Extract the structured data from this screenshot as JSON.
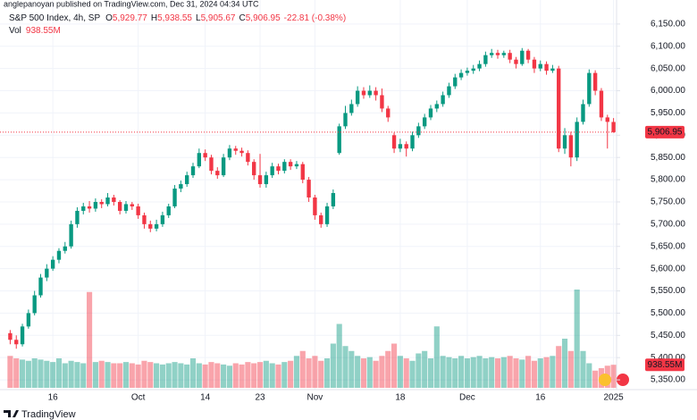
{
  "header": {
    "publisher": "anglepanoyan published on TradingView.com, Dec 31, 2024 04:34 UTC"
  },
  "footer": {
    "brand": "TradingView"
  },
  "chart_data": {
    "type": "candlestick",
    "title": "S&P 500 Index, 4h, SP",
    "ohlc": [
      {
        "key": "O",
        "value": "5,929.77"
      },
      {
        "key": "H",
        "value": "5,938.55"
      },
      {
        "key": "L",
        "value": "5,905.67"
      },
      {
        "key": "C",
        "value": "5,906.95"
      }
    ],
    "change": "-22.81 (-0.38%)",
    "up_color": "#089981",
    "down_color": "#f23645",
    "grid": true,
    "ylim": [
      5320,
      6204
    ],
    "yticks": [
      {
        "value": 5350,
        "label": "5,350.00"
      },
      {
        "value": 5400,
        "label": "5,400.00"
      },
      {
        "value": 5450,
        "label": "5,450.00"
      },
      {
        "value": 5500,
        "label": "5,500.00"
      },
      {
        "value": 5550,
        "label": "5,550.00"
      },
      {
        "value": 5600,
        "label": "5,600.00"
      },
      {
        "value": 5650,
        "label": "5,650.00"
      },
      {
        "value": 5700,
        "label": "5,700.00"
      },
      {
        "value": 5750,
        "label": "5,750.00"
      },
      {
        "value": 5800,
        "label": "5,800.00"
      },
      {
        "value": 5850,
        "label": "5,850.00"
      },
      {
        "value": 5900,
        "label": "5,900.00"
      },
      {
        "value": 5950,
        "label": "5,950.00"
      },
      {
        "value": 6000,
        "label": "6,000.00"
      },
      {
        "value": 6050,
        "label": "6,050.00"
      },
      {
        "value": 6100,
        "label": "6,100.00"
      },
      {
        "value": 6150,
        "label": "6,150.00"
      }
    ],
    "last_price_label": "5,906.95",
    "categories": [
      null,
      null,
      null,
      null,
      null,
      null,
      null,
      "16",
      null,
      null,
      null,
      null,
      null,
      null,
      null,
      null,
      null,
      null,
      null,
      null,
      null,
      "Oct",
      null,
      null,
      null,
      null,
      null,
      null,
      null,
      null,
      null,
      null,
      "14",
      null,
      null,
      null,
      null,
      null,
      null,
      null,
      null,
      "23",
      null,
      null,
      null,
      null,
      null,
      null,
      null,
      null,
      "Nov",
      null,
      null,
      null,
      null,
      null,
      null,
      null,
      null,
      null,
      null,
      null,
      null,
      null,
      "18",
      null,
      null,
      null,
      null,
      null,
      null,
      null,
      null,
      null,
      null,
      "Dec",
      null,
      null,
      null,
      null,
      null,
      null,
      null,
      null,
      null,
      null,
      null,
      "16",
      null,
      null,
      null,
      null,
      null,
      null,
      null,
      null,
      null,
      null,
      null,
      "2025"
    ],
    "candles": [
      [
        5455,
        5462,
        5430,
        5440
      ],
      [
        5440,
        5450,
        5420,
        5430
      ],
      [
        5430,
        5476,
        5425,
        5470
      ],
      [
        5470,
        5508,
        5465,
        5500
      ],
      [
        5500,
        5550,
        5495,
        5540
      ],
      [
        5540,
        5588,
        5535,
        5580
      ],
      [
        5580,
        5610,
        5572,
        5600
      ],
      [
        5600,
        5628,
        5595,
        5620
      ],
      [
        5620,
        5646,
        5612,
        5640
      ],
      [
        5640,
        5660,
        5634,
        5650
      ],
      [
        5650,
        5708,
        5645,
        5700
      ],
      [
        5700,
        5738,
        5692,
        5730
      ],
      [
        5730,
        5748,
        5722,
        5740
      ],
      [
        5740,
        5752,
        5726,
        5735
      ],
      [
        5735,
        5758,
        5728,
        5750
      ],
      [
        5750,
        5756,
        5736,
        5745
      ],
      [
        5745,
        5770,
        5740,
        5760
      ],
      [
        5760,
        5766,
        5742,
        5750
      ],
      [
        5750,
        5754,
        5722,
        5730
      ],
      [
        5730,
        5752,
        5724,
        5745
      ],
      [
        5745,
        5750,
        5732,
        5740
      ],
      [
        5740,
        5746,
        5712,
        5720
      ],
      [
        5720,
        5726,
        5690,
        5700
      ],
      [
        5700,
        5708,
        5682,
        5690
      ],
      [
        5690,
        5710,
        5684,
        5700
      ],
      [
        5700,
        5728,
        5694,
        5720
      ],
      [
        5720,
        5746,
        5714,
        5740
      ],
      [
        5740,
        5788,
        5736,
        5780
      ],
      [
        5780,
        5798,
        5772,
        5790
      ],
      [
        5790,
        5818,
        5784,
        5810
      ],
      [
        5810,
        5838,
        5804,
        5830
      ],
      [
        5830,
        5870,
        5826,
        5860
      ],
      [
        5860,
        5868,
        5842,
        5850
      ],
      [
        5850,
        5856,
        5812,
        5820
      ],
      [
        5820,
        5828,
        5802,
        5810
      ],
      [
        5810,
        5858,
        5806,
        5850
      ],
      [
        5850,
        5878,
        5844,
        5870
      ],
      [
        5870,
        5876,
        5856,
        5865
      ],
      [
        5865,
        5872,
        5852,
        5860
      ],
      [
        5860,
        5866,
        5832,
        5840
      ],
      [
        5840,
        5846,
        5800,
        5810
      ],
      [
        5810,
        5858,
        5782,
        5790
      ],
      [
        5790,
        5818,
        5782,
        5810
      ],
      [
        5810,
        5838,
        5804,
        5830
      ],
      [
        5830,
        5836,
        5812,
        5820
      ],
      [
        5820,
        5846,
        5814,
        5840
      ],
      [
        5840,
        5846,
        5822,
        5830
      ],
      [
        5830,
        5842,
        5824,
        5835
      ],
      [
        5835,
        5840,
        5792,
        5800
      ],
      [
        5800,
        5806,
        5750,
        5760
      ],
      [
        5760,
        5766,
        5710,
        5720
      ],
      [
        5720,
        5726,
        5692,
        5700
      ],
      [
        5700,
        5748,
        5694,
        5740
      ],
      [
        5740,
        5778,
        5734,
        5770
      ],
      [
        5860,
        5926,
        5856,
        5920
      ],
      [
        5920,
        5966,
        5914,
        5950
      ],
      [
        5950,
        5980,
        5944,
        5970
      ],
      [
        5970,
        6010,
        5964,
        6000
      ],
      [
        6000,
        6008,
        5982,
        5990
      ],
      [
        5990,
        6012,
        5984,
        6000
      ],
      [
        6000,
        6008,
        5978,
        5990
      ],
      [
        5990,
        6005,
        5952,
        5960
      ],
      [
        5960,
        5966,
        5930,
        5940
      ],
      [
        5900,
        5906,
        5860,
        5870
      ],
      [
        5870,
        5892,
        5862,
        5880
      ],
      [
        5880,
        5886,
        5852,
        5870
      ],
      [
        5870,
        5908,
        5864,
        5900
      ],
      [
        5900,
        5928,
        5894,
        5920
      ],
      [
        5920,
        5948,
        5914,
        5940
      ],
      [
        5940,
        5968,
        5934,
        5960
      ],
      [
        5960,
        5978,
        5952,
        5970
      ],
      [
        5970,
        5998,
        5964,
        5990
      ],
      [
        5990,
        6018,
        5984,
        6010
      ],
      [
        6010,
        6038,
        6004,
        6030
      ],
      [
        6030,
        6048,
        6024,
        6040
      ],
      [
        6040,
        6052,
        6034,
        6045
      ],
      [
        6045,
        6058,
        6038,
        6050
      ],
      [
        6050,
        6068,
        6044,
        6060
      ],
      [
        6060,
        6088,
        6054,
        6080
      ],
      [
        6080,
        6094,
        6074,
        6085
      ],
      [
        6085,
        6092,
        6072,
        6080
      ],
      [
        6080,
        6090,
        6074,
        6085
      ],
      [
        6085,
        6092,
        6062,
        6070
      ],
      [
        6070,
        6076,
        6050,
        6060
      ],
      [
        6060,
        6096,
        6056,
        6090
      ],
      [
        6090,
        6094,
        6062,
        6070
      ],
      [
        6070,
        6076,
        6040,
        6050
      ],
      [
        6050,
        6068,
        6044,
        6060
      ],
      [
        6060,
        6066,
        6036,
        6045
      ],
      [
        6045,
        6058,
        6040,
        6050
      ],
      [
        6050,
        6056,
        5862,
        5870
      ],
      [
        5870,
        5916,
        5858,
        5900
      ],
      [
        5900,
        5908,
        5830,
        5850
      ],
      [
        5850,
        5940,
        5842,
        5930
      ],
      [
        5930,
        5980,
        5924,
        5970
      ],
      [
        5970,
        6048,
        5964,
        6040
      ],
      [
        6040,
        6046,
        5990,
        6000
      ],
      [
        6000,
        6006,
        5932,
        5940
      ],
      [
        5940,
        5946,
        5870,
        5930
      ],
      [
        5929.77,
        5938.55,
        5905.67,
        5906.95
      ]
    ],
    "volume": {
      "label": "Vol",
      "last_label": "938.55M",
      "values": [
        1300,
        1200,
        1150,
        1100,
        1200,
        1150,
        1100,
        1050,
        1200,
        1000,
        1100,
        1050,
        1000,
        3900,
        1050,
        1100,
        1050,
        1000,
        1000,
        1050,
        1000,
        950,
        1100,
        1050,
        1000,
        950,
        1000,
        1050,
        1000,
        950,
        1200,
        1000,
        950,
        1050,
        1000,
        950,
        900,
        1000,
        950,
        1050,
        1000,
        1050,
        1100,
        1000,
        950,
        1050,
        1100,
        1300,
        1500,
        1200,
        1300,
        1100,
        1200,
        1800,
        2600,
        1700,
        1500,
        1300,
        1200,
        1250,
        1100,
        1300,
        1500,
        1800,
        1300,
        1200,
        1100,
        1400,
        1500,
        1200,
        2500,
        1300,
        1250,
        1200,
        1300,
        1200,
        1250,
        1300,
        1200,
        1250,
        1200,
        1250,
        1300,
        1200,
        1150,
        1300,
        1100,
        1200,
        1250,
        1300,
        1700,
        2000,
        1500,
        4000,
        1500,
        1000,
        700,
        800,
        900,
        938.55
      ]
    }
  }
}
